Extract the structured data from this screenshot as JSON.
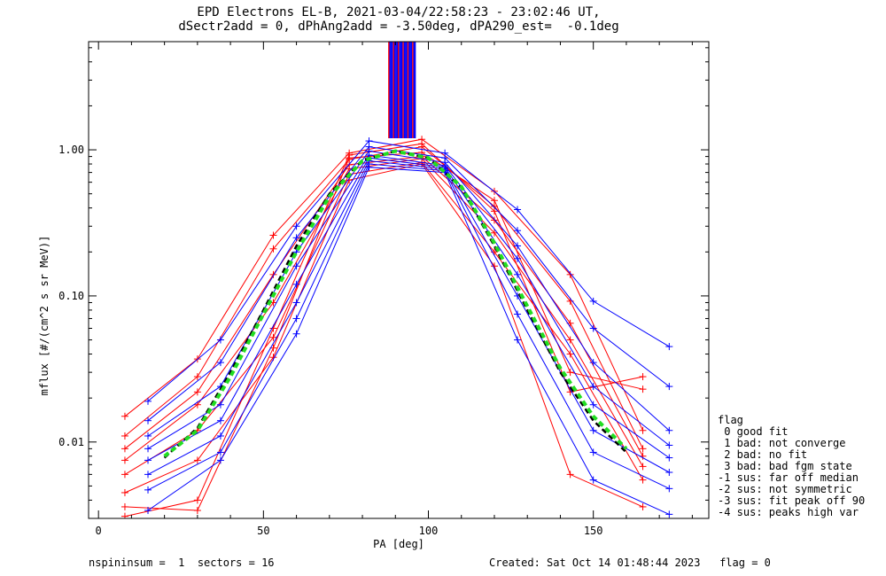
{
  "title": {
    "line1": "EPD Electrons EL-B, 2021-03-04/22:58:23 - 23:02:46 UT,",
    "line2": "dSectr2add = 0, dPhAng2add = -3.50deg, dPA290_est=  -0.1deg"
  },
  "footer": {
    "left": "nspininsum =  1  sectors = 16",
    "right": "Created: Sat Oct 14 01:48:44 2023   flag = 0"
  },
  "flag_legend": {
    "title": "flag",
    "items": [
      " 0 good fit",
      " 1 bad: not converge",
      " 2 bad: no fit",
      " 3 bad: bad fgm state",
      "-1 sus: far off median",
      "-2 sus: not symmetric",
      "-3 sus: fit peak off 90",
      "-4 sus: peaks high var"
    ]
  },
  "chart_data": {
    "type": "line",
    "xlabel": "PA [deg]",
    "ylabel": "mflux [#/(cm^2 s sr MeV)]",
    "xlim": [
      -3,
      185
    ],
    "ylim": [
      0.003,
      5.5
    ],
    "yscale": "log",
    "x_ticks": [
      0,
      50,
      100,
      150
    ],
    "y_ticks": [
      0.01,
      0.1,
      1.0
    ],
    "y_tick_labels": [
      "0.01",
      "0.10",
      "1.00"
    ],
    "colors": {
      "red": "#ff0000",
      "blue": "#0000ff",
      "fit": "#22dd22",
      "median": "#000000"
    },
    "series": [
      {
        "color": "red",
        "x": [
          8,
          30,
          53,
          76,
          98,
          120,
          143,
          165
        ],
        "y": [
          0.015,
          0.037,
          0.26,
          0.95,
          1.18,
          0.52,
          0.14,
          0.012
        ]
      },
      {
        "color": "red",
        "x": [
          8,
          30,
          53,
          76,
          98,
          120,
          143,
          165
        ],
        "y": [
          0.011,
          0.028,
          0.21,
          0.86,
          1.05,
          0.41,
          0.092,
          0.009
        ]
      },
      {
        "color": "red",
        "x": [
          8,
          30,
          53,
          76,
          98,
          120,
          143,
          165
        ],
        "y": [
          0.009,
          0.022,
          0.14,
          0.79,
          0.9,
          0.33,
          0.065,
          0.008
        ]
      },
      {
        "color": "red",
        "x": [
          8,
          30,
          53,
          76,
          98,
          120,
          143,
          165
        ],
        "y": [
          0.0075,
          0.018,
          0.09,
          0.74,
          0.87,
          0.27,
          0.05,
          0.0068
        ]
      },
      {
        "color": "red",
        "x": [
          8,
          30,
          53,
          76,
          98,
          120,
          143,
          165
        ],
        "y": [
          0.006,
          0.012,
          0.052,
          0.68,
          0.82,
          0.2,
          0.04,
          0.0055
        ]
      },
      {
        "color": "red",
        "x": [
          8,
          30,
          53,
          76,
          98,
          120,
          143,
          165
        ],
        "y": [
          0.0045,
          0.0075,
          0.038,
          0.62,
          0.8,
          0.16,
          0.006,
          0.0036
        ]
      },
      {
        "color": "red",
        "x": [
          8,
          30,
          53,
          76,
          98,
          120,
          143,
          165
        ],
        "y": [
          0.0036,
          0.0034,
          0.044,
          0.88,
          0.96,
          0.45,
          0.03,
          0.023
        ]
      },
      {
        "color": "red",
        "x": [
          8,
          30,
          53,
          76,
          98,
          120,
          143,
          165
        ],
        "y": [
          0.0031,
          0.004,
          0.06,
          0.92,
          1.1,
          0.38,
          0.022,
          0.028
        ]
      },
      {
        "color": "blue",
        "x": [
          15,
          37,
          60,
          82,
          105,
          127,
          150,
          173
        ],
        "y": [
          0.019,
          0.05,
          0.3,
          1.15,
          0.95,
          0.39,
          0.092,
          0.045
        ]
      },
      {
        "color": "blue",
        "x": [
          15,
          37,
          60,
          82,
          105,
          127,
          150,
          173
        ],
        "y": [
          0.014,
          0.035,
          0.25,
          1.05,
          0.88,
          0.28,
          0.06,
          0.024
        ]
      },
      {
        "color": "blue",
        "x": [
          15,
          37,
          60,
          82,
          105,
          127,
          150,
          173
        ],
        "y": [
          0.011,
          0.024,
          0.2,
          0.98,
          0.82,
          0.22,
          0.035,
          0.012
        ]
      },
      {
        "color": "blue",
        "x": [
          15,
          37,
          60,
          82,
          105,
          127,
          150,
          173
        ],
        "y": [
          0.009,
          0.018,
          0.16,
          0.92,
          0.78,
          0.18,
          0.024,
          0.0095
        ]
      },
      {
        "color": "blue",
        "x": [
          15,
          37,
          60,
          82,
          105,
          127,
          150,
          173
        ],
        "y": [
          0.0075,
          0.014,
          0.12,
          0.88,
          0.76,
          0.14,
          0.018,
          0.0078
        ]
      },
      {
        "color": "blue",
        "x": [
          15,
          37,
          60,
          82,
          105,
          127,
          150,
          173
        ],
        "y": [
          0.006,
          0.011,
          0.09,
          0.84,
          0.74,
          0.1,
          0.012,
          0.0062
        ]
      },
      {
        "color": "blue",
        "x": [
          15,
          37,
          60,
          82,
          105,
          127,
          150,
          173
        ],
        "y": [
          0.0047,
          0.0085,
          0.07,
          0.8,
          0.72,
          0.075,
          0.0085,
          0.0048
        ]
      },
      {
        "color": "blue",
        "x": [
          15,
          37,
          60,
          82,
          105,
          127,
          150,
          173
        ],
        "y": [
          0.0034,
          0.0075,
          0.055,
          0.76,
          0.7,
          0.05,
          0.0055,
          0.0032
        ]
      }
    ],
    "median_curve": {
      "x": [
        20,
        30,
        40,
        50,
        60,
        70,
        80,
        90,
        100,
        110,
        120,
        130,
        140,
        150,
        160
      ],
      "y": [
        0.0078,
        0.0125,
        0.03,
        0.08,
        0.22,
        0.5,
        0.85,
        0.98,
        0.88,
        0.55,
        0.22,
        0.08,
        0.03,
        0.014,
        0.0085
      ]
    },
    "fit_curve": {
      "x": [
        20,
        30,
        40,
        50,
        60,
        70,
        80,
        90,
        100,
        110,
        120,
        130,
        140,
        150,
        160
      ],
      "y": [
        0.008,
        0.012,
        0.028,
        0.075,
        0.2,
        0.48,
        0.84,
        0.98,
        0.88,
        0.56,
        0.23,
        0.085,
        0.032,
        0.015,
        0.009
      ]
    },
    "offscale_bar": {
      "x_from": 88,
      "x_to": 96,
      "y_from": 1.2
    }
  }
}
